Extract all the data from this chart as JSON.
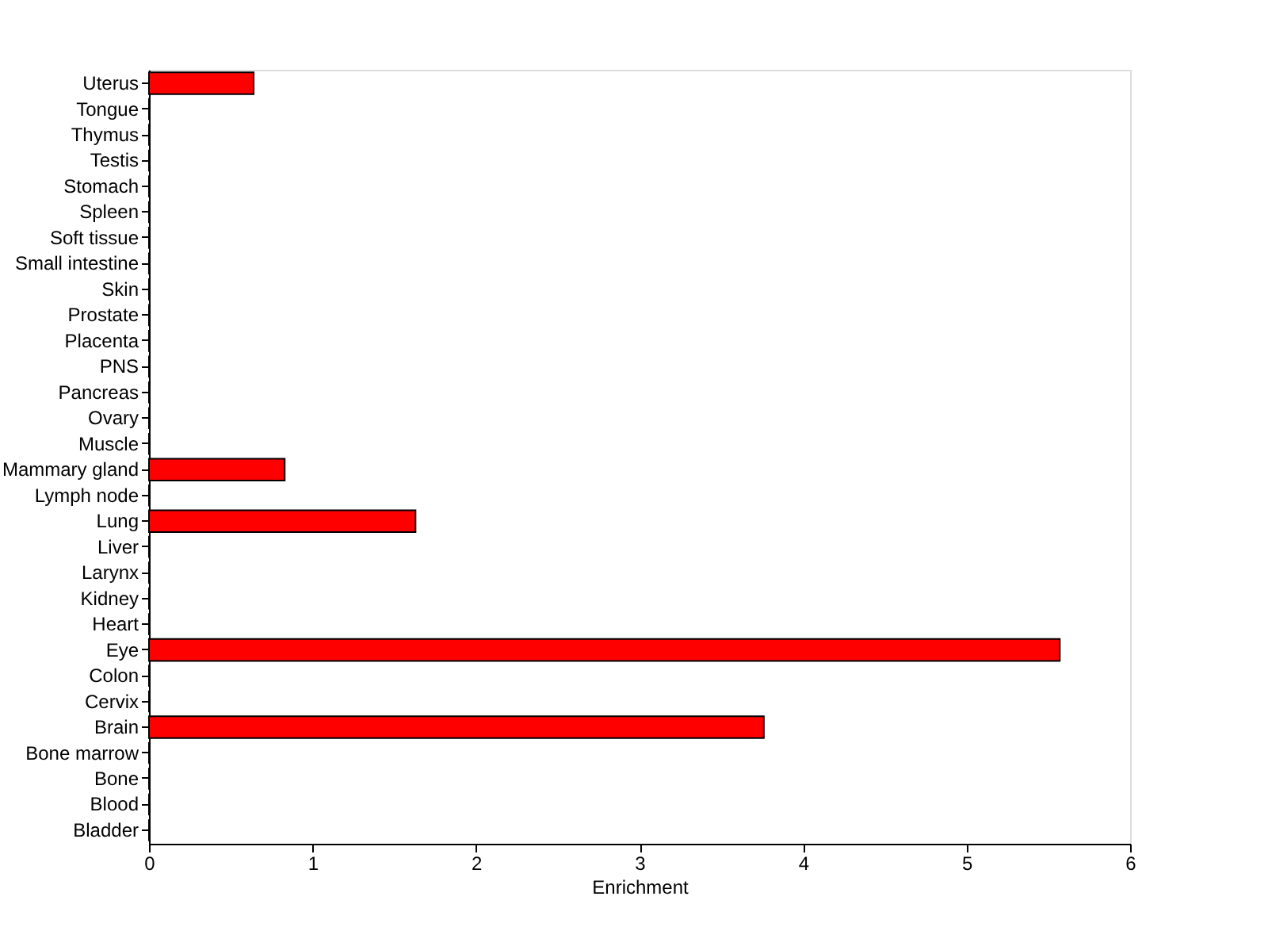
{
  "chart_data": {
    "type": "bar",
    "orientation": "horizontal",
    "xlabel": "Enrichment",
    "categories": [
      "Uterus",
      "Tongue",
      "Thymus",
      "Testis",
      "Stomach",
      "Spleen",
      "Soft tissue",
      "Small intestine",
      "Skin",
      "Prostate",
      "Placenta",
      "PNS",
      "Pancreas",
      "Ovary",
      "Muscle",
      "Mammary gland",
      "Lymph node",
      "Lung",
      "Liver",
      "Larynx",
      "Kidney",
      "Heart",
      "Eye",
      "Colon",
      "Cervix",
      "Brain",
      "Bone marrow",
      "Bone",
      "Blood",
      "Bladder"
    ],
    "values": [
      0.64,
      0,
      0,
      0,
      0,
      0,
      0,
      0,
      0,
      0,
      0,
      0,
      0,
      0,
      0,
      0.83,
      0,
      1.63,
      0,
      0,
      0,
      0,
      5.57,
      0,
      0,
      3.76,
      0,
      0,
      0,
      0
    ],
    "color": "#ff0000",
    "xlim": [
      0,
      6
    ],
    "xticks": [
      0,
      1,
      2,
      3,
      4,
      5,
      6
    ],
    "grid": false
  }
}
